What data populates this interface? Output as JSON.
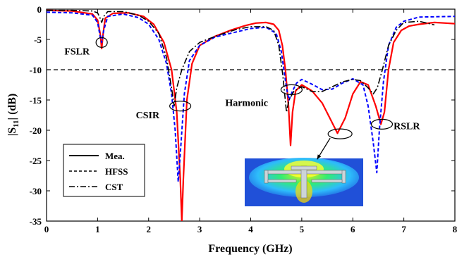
{
  "chart_data": {
    "type": "line",
    "title": "",
    "xlabel": "Frequency (GHz)",
    "ylabel_main": "|S",
    "ylabel_sub": "11",
    "ylabel_tail": "| (dB)",
    "xlim": [
      0,
      8
    ],
    "ylim": [
      -35,
      0
    ],
    "xticks": [
      0,
      1,
      2,
      3,
      4,
      5,
      6,
      7,
      8
    ],
    "yticks": [
      0,
      -5,
      -10,
      -15,
      -20,
      -25,
      -30,
      -35
    ],
    "reference_line": -10,
    "legend_position": "bottom-left",
    "series": [
      {
        "name": "Mea.",
        "style": "solid",
        "color": "#ff0000",
        "points": [
          [
            0,
            -0.2
          ],
          [
            0.5,
            -0.3
          ],
          [
            0.9,
            -0.8
          ],
          [
            1.0,
            -1.8
          ],
          [
            1.05,
            -4
          ],
          [
            1.08,
            -6.5
          ],
          [
            1.11,
            -4
          ],
          [
            1.15,
            -1.5
          ],
          [
            1.3,
            -0.7
          ],
          [
            1.6,
            -0.6
          ],
          [
            1.9,
            -1.2
          ],
          [
            2.1,
            -2.5
          ],
          [
            2.3,
            -5.5
          ],
          [
            2.45,
            -10
          ],
          [
            2.55,
            -17
          ],
          [
            2.62,
            -28
          ],
          [
            2.65,
            -35
          ],
          [
            2.68,
            -28
          ],
          [
            2.75,
            -15
          ],
          [
            2.85,
            -9
          ],
          [
            3.0,
            -6
          ],
          [
            3.3,
            -4.5
          ],
          [
            3.6,
            -3.5
          ],
          [
            3.9,
            -2.7
          ],
          [
            4.1,
            -2.3
          ],
          [
            4.3,
            -2.2
          ],
          [
            4.45,
            -2.5
          ],
          [
            4.55,
            -3.5
          ],
          [
            4.62,
            -6
          ],
          [
            4.68,
            -10
          ],
          [
            4.74,
            -16
          ],
          [
            4.78,
            -22.5
          ],
          [
            4.82,
            -17
          ],
          [
            4.88,
            -13.5
          ],
          [
            5.0,
            -12.5
          ],
          [
            5.2,
            -13.5
          ],
          [
            5.4,
            -15.5
          ],
          [
            5.55,
            -18
          ],
          [
            5.7,
            -20.5
          ],
          [
            5.85,
            -18
          ],
          [
            6.0,
            -14
          ],
          [
            6.15,
            -12
          ],
          [
            6.3,
            -12.5
          ],
          [
            6.45,
            -16
          ],
          [
            6.55,
            -19
          ],
          [
            6.62,
            -17
          ],
          [
            6.7,
            -10
          ],
          [
            6.8,
            -5.5
          ],
          [
            6.95,
            -3.5
          ],
          [
            7.1,
            -2.8
          ],
          [
            7.3,
            -2.5
          ],
          [
            7.6,
            -2.2
          ],
          [
            8,
            -2.4
          ]
        ]
      },
      {
        "name": "HFSS",
        "style": "dashed",
        "color": "#0000ff",
        "points": [
          [
            0,
            -0.5
          ],
          [
            0.5,
            -0.6
          ],
          [
            0.9,
            -1.0
          ],
          [
            1.0,
            -2.2
          ],
          [
            1.05,
            -4.5
          ],
          [
            1.08,
            -5.5
          ],
          [
            1.12,
            -3.5
          ],
          [
            1.2,
            -1.2
          ],
          [
            1.5,
            -0.8
          ],
          [
            1.8,
            -1.4
          ],
          [
            2.0,
            -2.5
          ],
          [
            2.2,
            -5
          ],
          [
            2.35,
            -9
          ],
          [
            2.45,
            -14
          ],
          [
            2.52,
            -20
          ],
          [
            2.58,
            -28.5
          ],
          [
            2.62,
            -24
          ],
          [
            2.7,
            -14
          ],
          [
            2.8,
            -8.5
          ],
          [
            3.0,
            -6
          ],
          [
            3.3,
            -4.6
          ],
          [
            3.7,
            -3.8
          ],
          [
            4.0,
            -3.2
          ],
          [
            4.3,
            -3
          ],
          [
            4.5,
            -4
          ],
          [
            4.6,
            -7
          ],
          [
            4.7,
            -13
          ],
          [
            4.75,
            -15
          ],
          [
            4.82,
            -13.5
          ],
          [
            4.9,
            -12.2
          ],
          [
            5.0,
            -11.6
          ],
          [
            5.2,
            -12.4
          ],
          [
            5.4,
            -13.3
          ],
          [
            5.6,
            -13.2
          ],
          [
            5.8,
            -12.2
          ],
          [
            6.0,
            -11.5
          ],
          [
            6.2,
            -12.5
          ],
          [
            6.3,
            -16
          ],
          [
            6.4,
            -22
          ],
          [
            6.47,
            -27
          ],
          [
            6.52,
            -20
          ],
          [
            6.6,
            -12
          ],
          [
            6.7,
            -6
          ],
          [
            6.85,
            -3
          ],
          [
            7.0,
            -2
          ],
          [
            7.3,
            -1.3
          ],
          [
            8,
            -1.2
          ]
        ]
      },
      {
        "name": "CST",
        "style": "dashdot",
        "color": "#000000",
        "points": [
          [
            0,
            -0.2
          ],
          [
            0.5,
            -0.2
          ],
          [
            0.9,
            -0.3
          ],
          [
            1.0,
            -0.6
          ],
          [
            1.05,
            -1.5
          ],
          [
            1.08,
            -2.2
          ],
          [
            1.12,
            -1.2
          ],
          [
            1.2,
            -0.4
          ],
          [
            1.5,
            -0.4
          ],
          [
            1.8,
            -1.0
          ],
          [
            2.0,
            -2
          ],
          [
            2.2,
            -4
          ],
          [
            2.35,
            -8
          ],
          [
            2.45,
            -13
          ],
          [
            2.5,
            -16
          ],
          [
            2.55,
            -13
          ],
          [
            2.65,
            -10
          ],
          [
            2.8,
            -7
          ],
          [
            3.0,
            -5.5
          ],
          [
            3.3,
            -4.5
          ],
          [
            3.7,
            -3.4
          ],
          [
            4.0,
            -2.9
          ],
          [
            4.3,
            -2.9
          ],
          [
            4.45,
            -3.5
          ],
          [
            4.55,
            -6
          ],
          [
            4.63,
            -11
          ],
          [
            4.7,
            -17
          ],
          [
            4.75,
            -15
          ],
          [
            4.85,
            -13.5
          ],
          [
            5.0,
            -12.8
          ],
          [
            5.2,
            -13.6
          ],
          [
            5.4,
            -13.6
          ],
          [
            5.6,
            -12.8
          ],
          [
            5.8,
            -12
          ],
          [
            6.0,
            -11.6
          ],
          [
            6.15,
            -11.8
          ],
          [
            6.3,
            -13
          ],
          [
            6.4,
            -14
          ],
          [
            6.48,
            -13
          ],
          [
            6.58,
            -10
          ],
          [
            6.7,
            -6
          ],
          [
            6.85,
            -3.5
          ],
          [
            7.0,
            -2.2
          ],
          [
            7.3,
            -2
          ],
          [
            7.6,
            -2.6
          ]
        ]
      }
    ],
    "annotations": [
      {
        "label": "FSLR",
        "ellipse_at": [
          1.08,
          -5.5
        ],
        "text_at": [
          0.35,
          -7.5
        ]
      },
      {
        "label": "CSIR",
        "ellipse_at": [
          2.62,
          -16
        ],
        "text_at": [
          1.75,
          -18
        ]
      },
      {
        "label": "Harmonic",
        "ellipse_at": [
          4.8,
          -13.3
        ],
        "text_at": [
          3.5,
          -16
        ]
      },
      {
        "label": "RSLR",
        "ellipse_at": [
          6.57,
          -19
        ],
        "text_at": [
          6.8,
          -19.8
        ]
      }
    ],
    "inset": {
      "description_hidden": true,
      "ellipse_at": [
        5.75,
        -20.6
      ],
      "arrow_to": [
        5.3,
        -24.8
      ]
    }
  }
}
